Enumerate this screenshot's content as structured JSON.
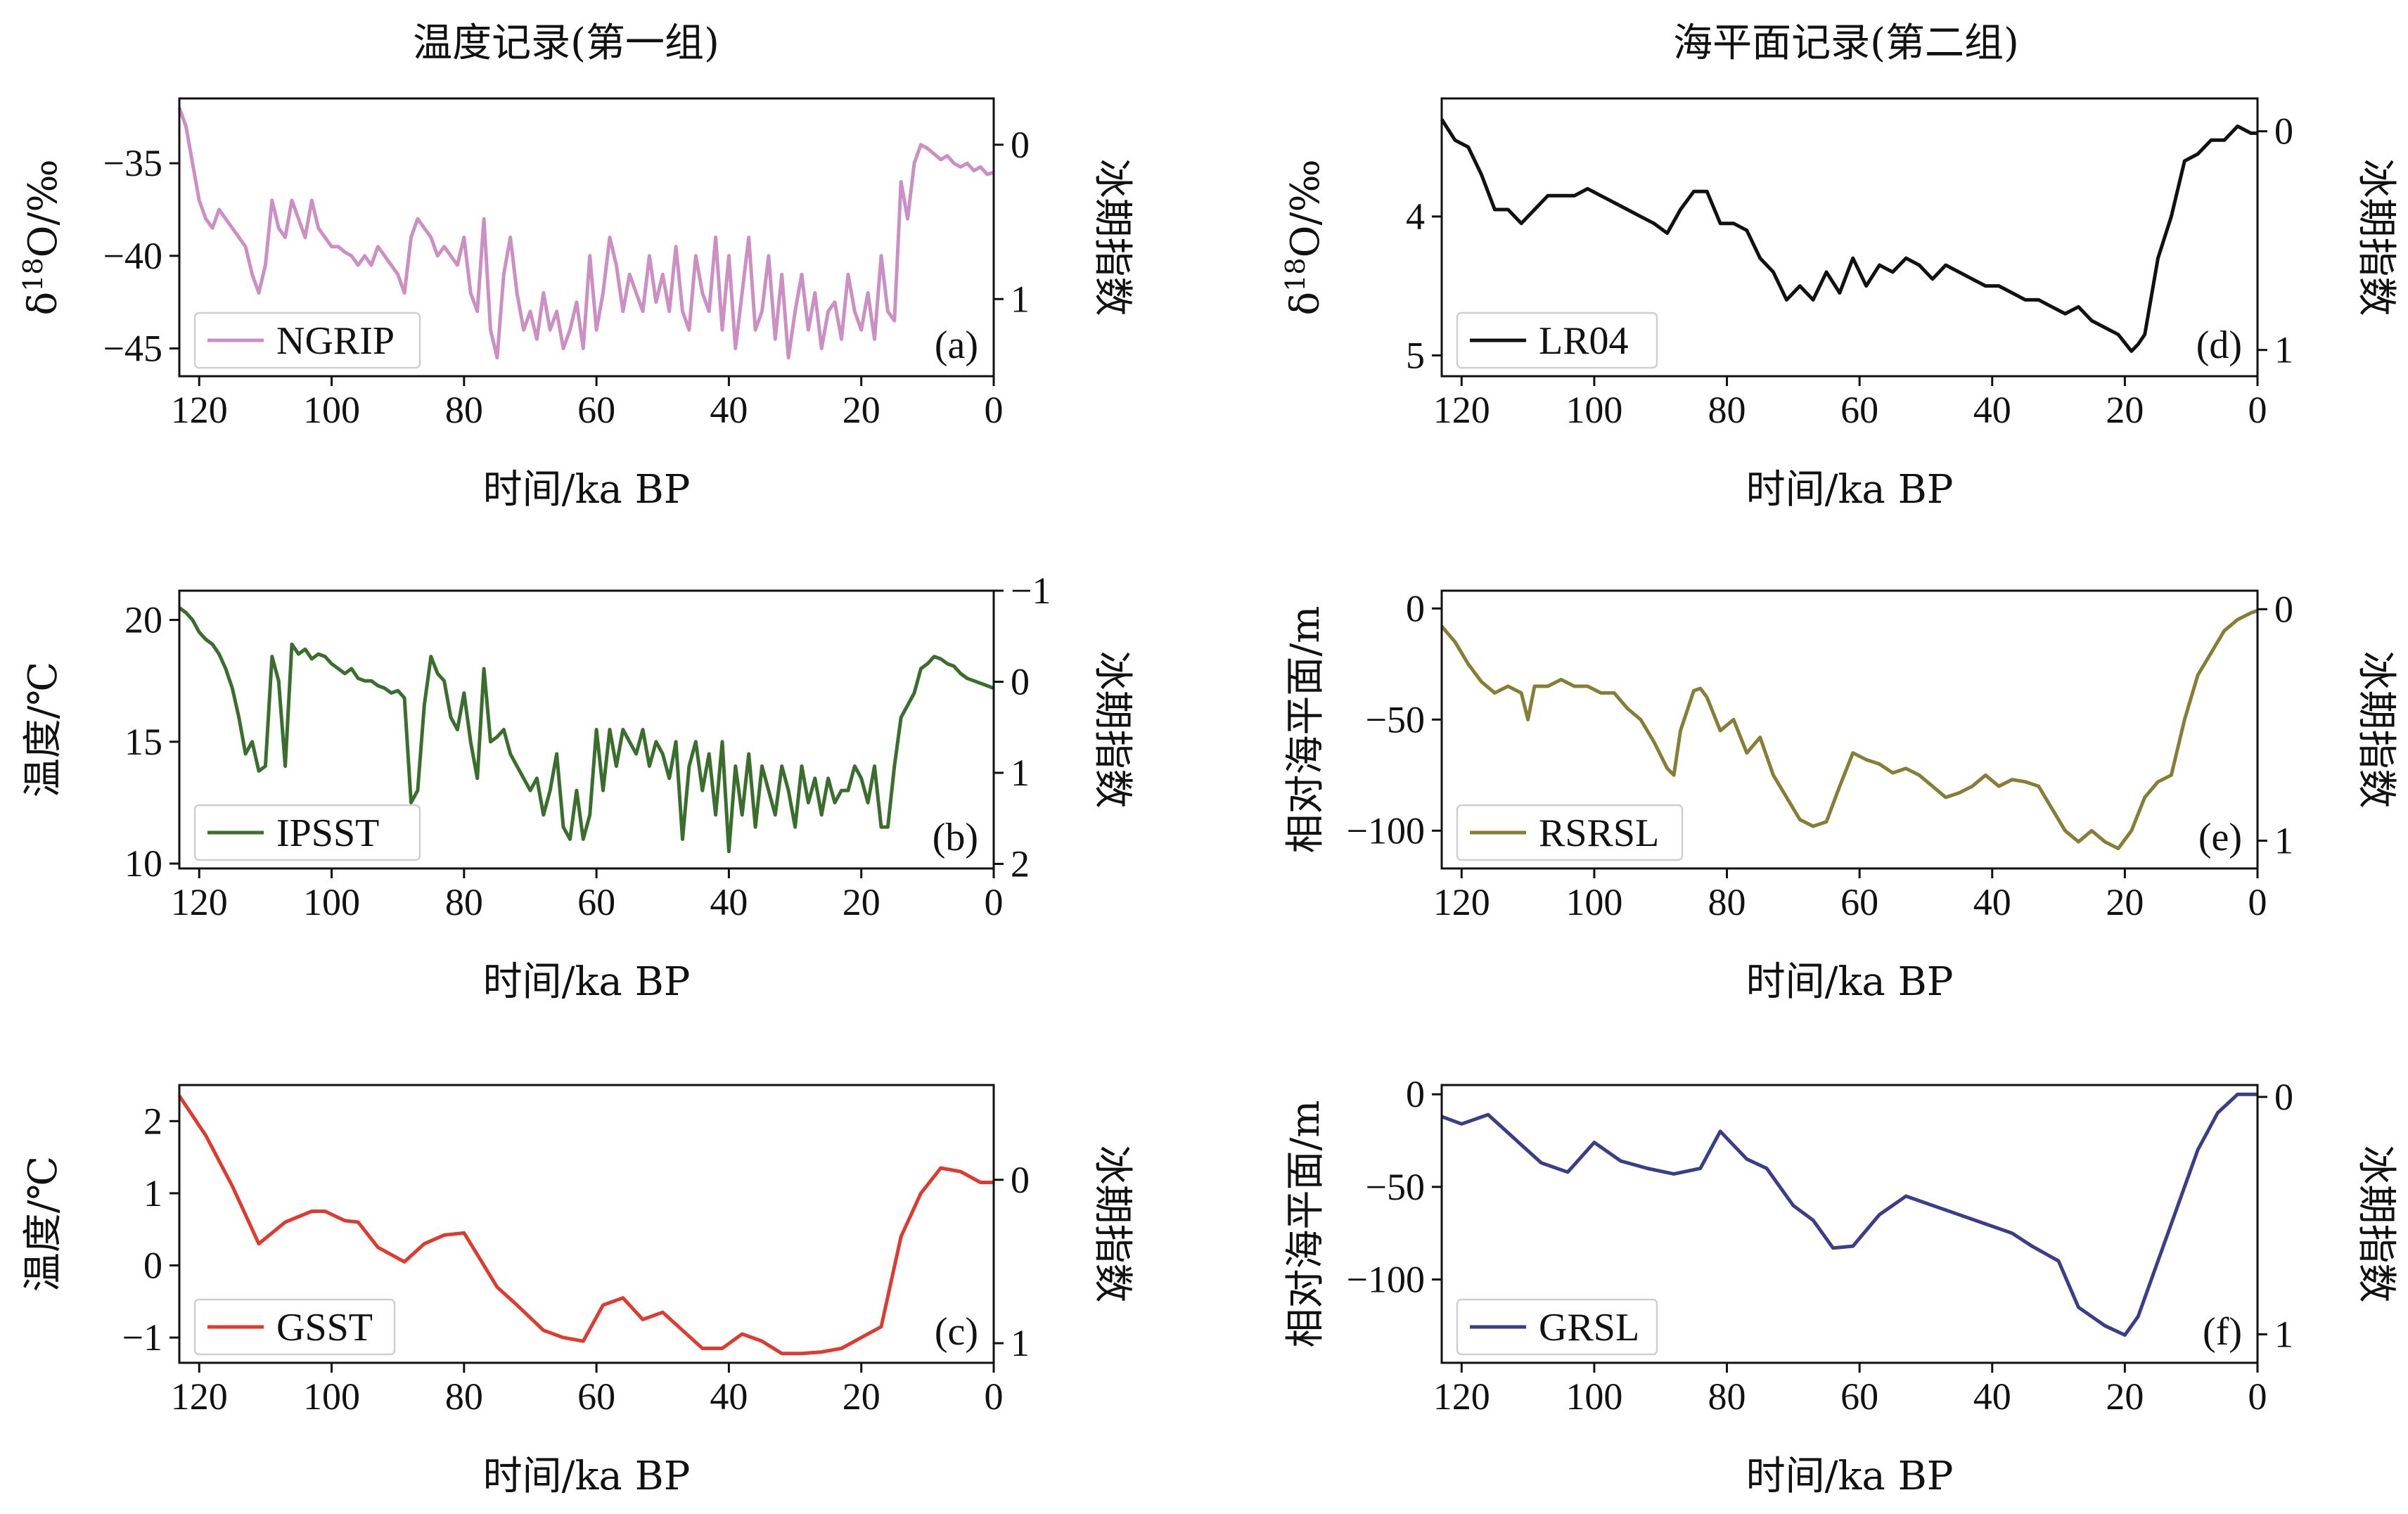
{
  "chart_data": [
    {
      "id": "a",
      "type": "line",
      "column_title": "温度记录(第一组)",
      "panel_label": "(a)",
      "xlabel": "时间/ka BP",
      "ylabel": "δ18O/‰",
      "ylabel_base": "δ",
      "ylabel_sup": "18",
      "ylabel_rest": "O/‰",
      "y2label": "冰期指数",
      "xlim": [
        123,
        0
      ],
      "ylim": [
        -46.5,
        -31.5
      ],
      "y2lim": [
        1.5,
        -0.3
      ],
      "xticks": [
        120,
        100,
        80,
        60,
        40,
        20,
        0
      ],
      "yticks": [
        -35,
        -40,
        -45
      ],
      "y2ticks": [
        0,
        1
      ],
      "series": [
        {
          "name": "NGRIP",
          "color": "#cc8fc4",
          "x": [
            123,
            122,
            121,
            120,
            119,
            118,
            117,
            116,
            115,
            114,
            113,
            112,
            111,
            110,
            109,
            108,
            107,
            106,
            105,
            104,
            103,
            102,
            101,
            100,
            99,
            98,
            97,
            96,
            95,
            94,
            93,
            92,
            91,
            90,
            89,
            88,
            87,
            86,
            85,
            84,
            83,
            82,
            81,
            80,
            79,
            78,
            77,
            76,
            75,
            74,
            73,
            72,
            71,
            70,
            69,
            68,
            67,
            66,
            65,
            64,
            63,
            62,
            61,
            60,
            59,
            58,
            57,
            56,
            55,
            54,
            53,
            52,
            51,
            50,
            49,
            48,
            47,
            46,
            45,
            44,
            43,
            42,
            41,
            40,
            39,
            38,
            37,
            36,
            35,
            34,
            33,
            32,
            31,
            30,
            29,
            28,
            27,
            26,
            25,
            24,
            23,
            22,
            21,
            20,
            19,
            18,
            17,
            16,
            15,
            14,
            13,
            12,
            11,
            10,
            9,
            8,
            7,
            6,
            5,
            4,
            3,
            2,
            1,
            0
          ],
          "values": [
            -32,
            -33,
            -35,
            -37,
            -38,
            -38.5,
            -37.5,
            -38,
            -38.5,
            -39,
            -39.5,
            -41,
            -42,
            -40.5,
            -37,
            -38.5,
            -39,
            -37,
            -38,
            -39,
            -37,
            -38.5,
            -39,
            -39.5,
            -39.5,
            -39.8,
            -40,
            -40.5,
            -40,
            -40.5,
            -39.5,
            -40,
            -40.5,
            -41,
            -42,
            -39,
            -38,
            -38.5,
            -39,
            -40,
            -39.5,
            -40,
            -40.5,
            -39,
            -42,
            -43,
            -38,
            -44,
            -45.5,
            -41,
            -39,
            -42,
            -44,
            -43,
            -44.5,
            -42,
            -44,
            -43,
            -45,
            -44,
            -42.5,
            -45,
            -40,
            -44,
            -42,
            -39,
            -40.5,
            -43,
            -41,
            -42,
            -43,
            -40,
            -42.5,
            -41,
            -43,
            -39.5,
            -43,
            -44,
            -40,
            -42,
            -43,
            -39,
            -44,
            -40,
            -45,
            -42,
            -39,
            -44,
            -43,
            -40,
            -44.5,
            -41,
            -45.5,
            -43,
            -41,
            -44,
            -42,
            -45,
            -43,
            -42.5,
            -44.5,
            -41,
            -43,
            -44,
            -42,
            -44.5,
            -40,
            -43,
            -43.5,
            -36,
            -38,
            -35,
            -34,
            -34.2,
            -34.5,
            -34.8,
            -34.6,
            -35,
            -35.2,
            -35,
            -35.4,
            -35.2,
            -35.6,
            -35.5
          ]
        }
      ]
    },
    {
      "id": "b",
      "type": "line",
      "panel_label": "(b)",
      "xlabel": "时间/ka BP",
      "ylabel": "温度/℃",
      "y2label": "冰期指数",
      "xlim": [
        123,
        0
      ],
      "ylim": [
        9.8,
        21.2
      ],
      "y2lim": [
        2.05,
        -1.0
      ],
      "xticks": [
        120,
        100,
        80,
        60,
        40,
        20,
        0
      ],
      "yticks": [
        20,
        15,
        10
      ],
      "y2ticks": [
        -1,
        0,
        1,
        2
      ],
      "series": [
        {
          "name": "IPSST",
          "color": "#3a6e2c",
          "x": [
            123,
            122,
            121,
            120,
            119,
            118,
            117,
            116,
            115,
            114,
            113,
            112,
            111,
            110,
            109,
            108,
            107,
            106,
            105,
            104,
            103,
            102,
            101,
            100,
            99,
            98,
            97,
            96,
            95,
            94,
            93,
            92,
            91,
            90,
            89,
            88,
            87,
            86,
            85,
            84,
            83,
            82,
            81,
            80,
            79,
            78,
            77,
            76,
            75,
            74,
            73,
            72,
            71,
            70,
            69,
            68,
            67,
            66,
            65,
            64,
            63,
            62,
            61,
            60,
            59,
            58,
            57,
            56,
            55,
            54,
            53,
            52,
            51,
            50,
            49,
            48,
            47,
            46,
            45,
            44,
            43,
            42,
            41,
            40,
            39,
            38,
            37,
            36,
            35,
            34,
            33,
            32,
            31,
            30,
            29,
            28,
            27,
            26,
            25,
            24,
            23,
            22,
            21,
            20,
            19,
            18,
            17,
            16,
            15,
            14,
            13,
            12,
            11,
            10,
            9,
            8,
            7,
            6,
            5,
            4,
            3,
            2,
            1,
            0
          ],
          "values": [
            20.5,
            20.3,
            20,
            19.5,
            19.2,
            19,
            18.6,
            18,
            17.2,
            16,
            14.5,
            15,
            13.8,
            14,
            18.5,
            17.5,
            14,
            19,
            18.6,
            18.8,
            18.4,
            18.6,
            18.5,
            18.2,
            18,
            17.8,
            18,
            17.6,
            17.5,
            17.5,
            17.3,
            17.2,
            17,
            17.1,
            16.8,
            12.5,
            13,
            16.5,
            18.5,
            17.8,
            17.5,
            16,
            15.5,
            17,
            15,
            13.5,
            18,
            15,
            15.2,
            15.5,
            14.5,
            14,
            13.5,
            13,
            13.5,
            12,
            13,
            14.5,
            11.5,
            11,
            13,
            11,
            12,
            15.5,
            13,
            15.5,
            14,
            15.5,
            15,
            14.5,
            15.5,
            14,
            15,
            14.5,
            13.5,
            15,
            11,
            14,
            15,
            13,
            14.5,
            12,
            15,
            10.5,
            14,
            12,
            14.5,
            11.5,
            14,
            13,
            12,
            14,
            13,
            11.5,
            14,
            12.5,
            13.5,
            12,
            13.5,
            12.5,
            13,
            13,
            14,
            13.5,
            12.5,
            14,
            11.5,
            11.5,
            14,
            16,
            16.5,
            17,
            18,
            18.2,
            18.5,
            18.4,
            18.2,
            18.1,
            17.8,
            17.6,
            17.5,
            17.4,
            17.3,
            17.2
          ]
        }
      ]
    },
    {
      "id": "c",
      "type": "line",
      "panel_label": "(c)",
      "xlabel": "时间/ka BP",
      "ylabel": "温度/℃",
      "y2label": "冰期指数",
      "xlim": [
        123,
        0
      ],
      "ylim": [
        -1.35,
        2.5
      ],
      "y2lim": [
        1.12,
        -0.58
      ],
      "xticks": [
        120,
        100,
        80,
        60,
        40,
        20,
        0
      ],
      "yticks": [
        2,
        1,
        0,
        -1
      ],
      "y2ticks": [
        0,
        1
      ],
      "series": [
        {
          "name": "GSST",
          "color": "#e0392f",
          "x": [
            123,
            119,
            115,
            111,
            107,
            103,
            101,
            98,
            96,
            93,
            89,
            86,
            83,
            80,
            78,
            75,
            72,
            68,
            65,
            62,
            59,
            56,
            53,
            50,
            47,
            44,
            41,
            38,
            35,
            32,
            29,
            26,
            23,
            20,
            17,
            14,
            11,
            8,
            5,
            2,
            0
          ],
          "values": [
            2.35,
            1.8,
            1.1,
            0.3,
            0.6,
            0.75,
            0.75,
            0.62,
            0.6,
            0.25,
            0.05,
            0.3,
            0.42,
            0.45,
            0.15,
            -0.3,
            -0.55,
            -0.9,
            -1.0,
            -1.05,
            -0.55,
            -0.45,
            -0.75,
            -0.65,
            -0.9,
            -1.15,
            -1.15,
            -0.95,
            -1.05,
            -1.22,
            -1.22,
            -1.2,
            -1.15,
            -1.0,
            -0.85,
            0.4,
            1.0,
            1.35,
            1.3,
            1.15,
            1.15
          ]
        }
      ]
    },
    {
      "id": "d",
      "type": "line",
      "column_title": "海平面记录(第二组)",
      "panel_label": "(d)",
      "xlabel": "时间/ka BP",
      "ylabel": "δ18O/‰",
      "ylabel_base": "δ",
      "ylabel_sup": "18",
      "ylabel_rest": "O/‰",
      "y2label": "冰期指数",
      "xlim": [
        123,
        0
      ],
      "ylim": [
        5.15,
        3.15
      ],
      "y2lim": [
        1.12,
        -0.15
      ],
      "xticks": [
        120,
        100,
        80,
        60,
        40,
        20,
        0
      ],
      "yticks": [
        4,
        5
      ],
      "y2ticks": [
        0,
        1
      ],
      "series": [
        {
          "name": "LR04",
          "color": "#111111",
          "x": [
            123,
            121,
            119,
            117,
            115,
            113,
            111,
            109,
            107,
            105,
            103,
            101,
            99,
            97,
            95,
            93,
            91,
            89,
            87,
            85,
            83,
            81,
            79,
            77,
            75,
            73,
            71,
            69,
            67,
            65,
            63,
            61,
            59,
            57,
            55,
            53,
            51,
            49,
            47,
            45,
            43,
            41,
            39,
            37,
            35,
            33,
            31,
            29,
            27,
            25,
            23,
            21,
            19,
            18,
            17,
            15,
            13,
            11,
            9,
            7,
            5,
            3,
            1,
            0
          ],
          "values": [
            3.3,
            3.45,
            3.5,
            3.7,
            3.95,
            3.95,
            4.05,
            3.95,
            3.85,
            3.85,
            3.85,
            3.8,
            3.85,
            3.9,
            3.95,
            4.0,
            4.05,
            4.12,
            3.95,
            3.82,
            3.82,
            4.05,
            4.05,
            4.1,
            4.3,
            4.4,
            4.6,
            4.5,
            4.6,
            4.4,
            4.55,
            4.3,
            4.5,
            4.35,
            4.4,
            4.3,
            4.35,
            4.45,
            4.35,
            4.4,
            4.45,
            4.5,
            4.5,
            4.55,
            4.6,
            4.6,
            4.65,
            4.7,
            4.65,
            4.75,
            4.8,
            4.85,
            4.97,
            4.92,
            4.85,
            4.3,
            4.0,
            3.6,
            3.55,
            3.45,
            3.45,
            3.35,
            3.4,
            3.4
          ]
        }
      ]
    },
    {
      "id": "e",
      "type": "line",
      "panel_label": "(e)",
      "xlabel": "时间/ka BP",
      "ylabel": "相对海平面/m",
      "y2label": "冰期指数",
      "xlim": [
        123,
        0
      ],
      "ylim": [
        -117,
        8
      ],
      "y2lim": [
        1.12,
        -0.08
      ],
      "xticks": [
        120,
        100,
        80,
        60,
        40,
        20,
        0
      ],
      "yticks": [
        0,
        -50,
        -100
      ],
      "y2ticks": [
        0,
        1
      ],
      "series": [
        {
          "name": "RSRSL",
          "color": "#877e36",
          "x": [
            123,
            121,
            119,
            117,
            115,
            113,
            111,
            110,
            109,
            107,
            105,
            103,
            101,
            99,
            97,
            95,
            93,
            91,
            89,
            88,
            87,
            85,
            84,
            83,
            81,
            79,
            77,
            75,
            73,
            71,
            69,
            67,
            65,
            63,
            61,
            59,
            57,
            55,
            53,
            51,
            49,
            47,
            45,
            43,
            41,
            39,
            37,
            35,
            33,
            31,
            29,
            27,
            25,
            23,
            21,
            19,
            17,
            15,
            13,
            11,
            9,
            7,
            5,
            3,
            1,
            0
          ],
          "values": [
            -8,
            -15,
            -25,
            -33,
            -38,
            -35,
            -38,
            -50,
            -35,
            -35,
            -32,
            -35,
            -35,
            -38,
            -38,
            -45,
            -50,
            -60,
            -72,
            -75,
            -55,
            -37,
            -36,
            -40,
            -55,
            -50,
            -65,
            -58,
            -75,
            -85,
            -95,
            -98,
            -96,
            -80,
            -65,
            -68,
            -70,
            -74,
            -72,
            -75,
            -80,
            -85,
            -83,
            -80,
            -75,
            -80,
            -77,
            -78,
            -80,
            -90,
            -100,
            -105,
            -100,
            -105,
            -108,
            -100,
            -85,
            -78,
            -75,
            -50,
            -30,
            -20,
            -10,
            -5,
            -2,
            -1
          ]
        }
      ]
    },
    {
      "id": "f",
      "type": "line",
      "panel_label": "(f)",
      "xlabel": "时间/ka BP",
      "ylabel": "相对海平面/m",
      "y2label": "冰期指数",
      "xlim": [
        123,
        0
      ],
      "ylim": [
        -145,
        5
      ],
      "y2lim": [
        1.12,
        -0.05
      ],
      "xticks": [
        120,
        100,
        80,
        60,
        40,
        20,
        0
      ],
      "yticks": [
        0,
        -50,
        -100
      ],
      "y2ticks": [
        0,
        1
      ],
      "series": [
        {
          "name": "GRSL",
          "color": "#3a3d88",
          "x": [
            123,
            120,
            116,
            112,
            108,
            104,
            100,
            96,
            92,
            88,
            84,
            81,
            77,
            74,
            70,
            67,
            64,
            61,
            57,
            53,
            49,
            45,
            41,
            37,
            34,
            30,
            27,
            23,
            20,
            18,
            15,
            12,
            9,
            6,
            3,
            0
          ],
          "values": [
            -12,
            -16,
            -11,
            -24,
            -37,
            -42,
            -26,
            -36,
            -40,
            -43,
            -40,
            -20,
            -35,
            -40,
            -60,
            -68,
            -83,
            -82,
            -65,
            -55,
            -60,
            -65,
            -70,
            -75,
            -82,
            -90,
            -115,
            -125,
            -130,
            -120,
            -90,
            -60,
            -30,
            -10,
            0,
            0
          ]
        }
      ]
    }
  ]
}
